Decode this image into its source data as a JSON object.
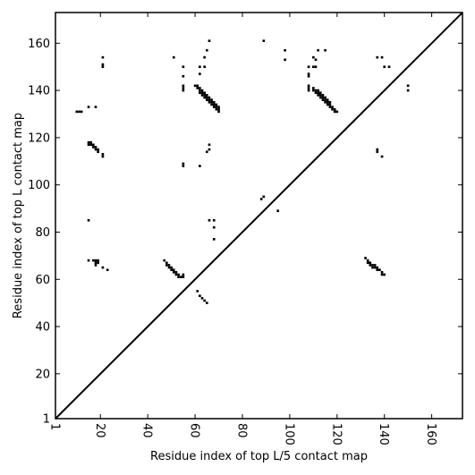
{
  "chart_data": {
    "type": "scatter",
    "xlabel": "Residue index of top L/5 contact map",
    "ylabel": "Residue index of top L contact map",
    "xlim": [
      1,
      173
    ],
    "ylim": [
      1,
      173
    ],
    "xticks": [
      1,
      20,
      40,
      60,
      80,
      100,
      120,
      140,
      160
    ],
    "yticks": [
      1,
      20,
      40,
      60,
      80,
      100,
      120,
      140,
      160
    ],
    "xtick_labels": [
      "1",
      "20",
      "40",
      "60",
      "80",
      "100",
      "120",
      "140",
      "160"
    ],
    "ytick_labels": [
      "1",
      "20",
      "40",
      "60",
      "80",
      "100",
      "120",
      "140",
      "160"
    ],
    "xtick_rotation": -90,
    "diagonal": true,
    "marker_color": "#000000",
    "upper_triangle": {
      "name": "top L contact map",
      "points": [
        [
          21,
          154
        ],
        [
          21,
          151
        ],
        [
          21,
          150
        ],
        [
          51,
          154
        ],
        [
          55,
          150
        ],
        [
          55,
          146
        ],
        [
          55,
          142
        ],
        [
          55,
          141
        ],
        [
          55,
          140
        ],
        [
          60,
          142
        ],
        [
          61,
          142
        ],
        [
          61,
          141
        ],
        [
          62,
          141
        ],
        [
          62,
          140
        ],
        [
          62,
          139
        ],
        [
          63,
          140
        ],
        [
          63,
          139
        ],
        [
          63,
          138
        ],
        [
          64,
          139
        ],
        [
          64,
          138
        ],
        [
          64,
          137
        ],
        [
          65,
          138
        ],
        [
          65,
          137
        ],
        [
          65,
          136
        ],
        [
          66,
          137
        ],
        [
          66,
          136
        ],
        [
          66,
          135
        ],
        [
          67,
          136
        ],
        [
          67,
          135
        ],
        [
          67,
          134
        ],
        [
          68,
          135
        ],
        [
          68,
          134
        ],
        [
          68,
          133
        ],
        [
          69,
          134
        ],
        [
          69,
          133
        ],
        [
          69,
          132
        ],
        [
          70,
          133
        ],
        [
          70,
          132
        ],
        [
          70,
          131
        ],
        [
          62,
          150
        ],
        [
          62,
          147
        ],
        [
          64,
          154
        ],
        [
          64,
          150
        ],
        [
          65,
          157
        ],
        [
          66,
          161
        ],
        [
          89,
          161
        ],
        [
          98,
          157
        ],
        [
          98,
          153
        ],
        [
          108,
          150
        ],
        [
          108,
          147
        ],
        [
          108,
          146
        ],
        [
          108,
          142
        ],
        [
          108,
          141
        ],
        [
          108,
          140
        ],
        [
          110,
          154
        ],
        [
          110,
          150
        ],
        [
          111,
          153
        ],
        [
          111,
          150
        ],
        [
          112,
          157
        ],
        [
          115,
          157
        ],
        [
          110,
          141
        ],
        [
          110,
          140
        ],
        [
          111,
          140
        ],
        [
          111,
          139
        ],
        [
          112,
          140
        ],
        [
          112,
          139
        ],
        [
          112,
          138
        ],
        [
          113,
          139
        ],
        [
          113,
          138
        ],
        [
          113,
          137
        ],
        [
          114,
          138
        ],
        [
          114,
          137
        ],
        [
          114,
          136
        ],
        [
          115,
          137
        ],
        [
          115,
          136
        ],
        [
          115,
          135
        ],
        [
          116,
          136
        ],
        [
          116,
          135
        ],
        [
          116,
          134
        ],
        [
          117,
          135
        ],
        [
          117,
          134
        ],
        [
          117,
          133
        ],
        [
          118,
          133
        ],
        [
          118,
          132
        ],
        [
          119,
          132
        ],
        [
          119,
          131
        ],
        [
          120,
          131
        ],
        [
          137,
          154
        ],
        [
          139,
          154
        ],
        [
          140,
          150
        ],
        [
          142,
          150
        ],
        [
          150,
          142
        ],
        [
          150,
          140
        ]
      ]
    },
    "lower_triangle": {
      "name": "top L/5 contact map",
      "points": [
        [
          10,
          131
        ],
        [
          11,
          131
        ],
        [
          12,
          131
        ],
        [
          15,
          133
        ],
        [
          18,
          133
        ],
        [
          15,
          118
        ],
        [
          15,
          117
        ],
        [
          16,
          118
        ],
        [
          16,
          117
        ],
        [
          17,
          117
        ],
        [
          17,
          116
        ],
        [
          18,
          116
        ],
        [
          18,
          115
        ],
        [
          19,
          115
        ],
        [
          19,
          114
        ],
        [
          21,
          113
        ],
        [
          21,
          112
        ],
        [
          55,
          109
        ],
        [
          55,
          108
        ],
        [
          62,
          108
        ],
        [
          66,
          117
        ],
        [
          66,
          115
        ],
        [
          65,
          114
        ],
        [
          15,
          85
        ],
        [
          66,
          85
        ],
        [
          68,
          85
        ],
        [
          68,
          82
        ],
        [
          68,
          77
        ],
        [
          88,
          94
        ],
        [
          89,
          95
        ],
        [
          95,
          89
        ],
        [
          15,
          68
        ],
        [
          17,
          68
        ],
        [
          18,
          68
        ],
        [
          18,
          67
        ],
        [
          18,
          66
        ],
        [
          19,
          68
        ],
        [
          19,
          67
        ],
        [
          21,
          65
        ],
        [
          23,
          64
        ],
        [
          47,
          68
        ],
        [
          48,
          67
        ],
        [
          48,
          66
        ],
        [
          49,
          66
        ],
        [
          49,
          65
        ],
        [
          50,
          65
        ],
        [
          50,
          64
        ],
        [
          51,
          64
        ],
        [
          51,
          63
        ],
        [
          52,
          63
        ],
        [
          52,
          62
        ],
        [
          53,
          62
        ],
        [
          53,
          61
        ],
        [
          54,
          61
        ],
        [
          55,
          61
        ],
        [
          55,
          62
        ],
        [
          61,
          55
        ],
        [
          62,
          53
        ],
        [
          63,
          52
        ],
        [
          64,
          51
        ],
        [
          65,
          50
        ],
        [
          132,
          69
        ],
        [
          133,
          68
        ],
        [
          133,
          67
        ],
        [
          134,
          67
        ],
        [
          134,
          66
        ],
        [
          135,
          66
        ],
        [
          135,
          65
        ],
        [
          136,
          66
        ],
        [
          136,
          65
        ],
        [
          137,
          65
        ],
        [
          137,
          64
        ],
        [
          138,
          64
        ],
        [
          139,
          63
        ],
        [
          139,
          62
        ],
        [
          140,
          62
        ],
        [
          137,
          115
        ],
        [
          137,
          114
        ],
        [
          139,
          112
        ]
      ]
    }
  }
}
